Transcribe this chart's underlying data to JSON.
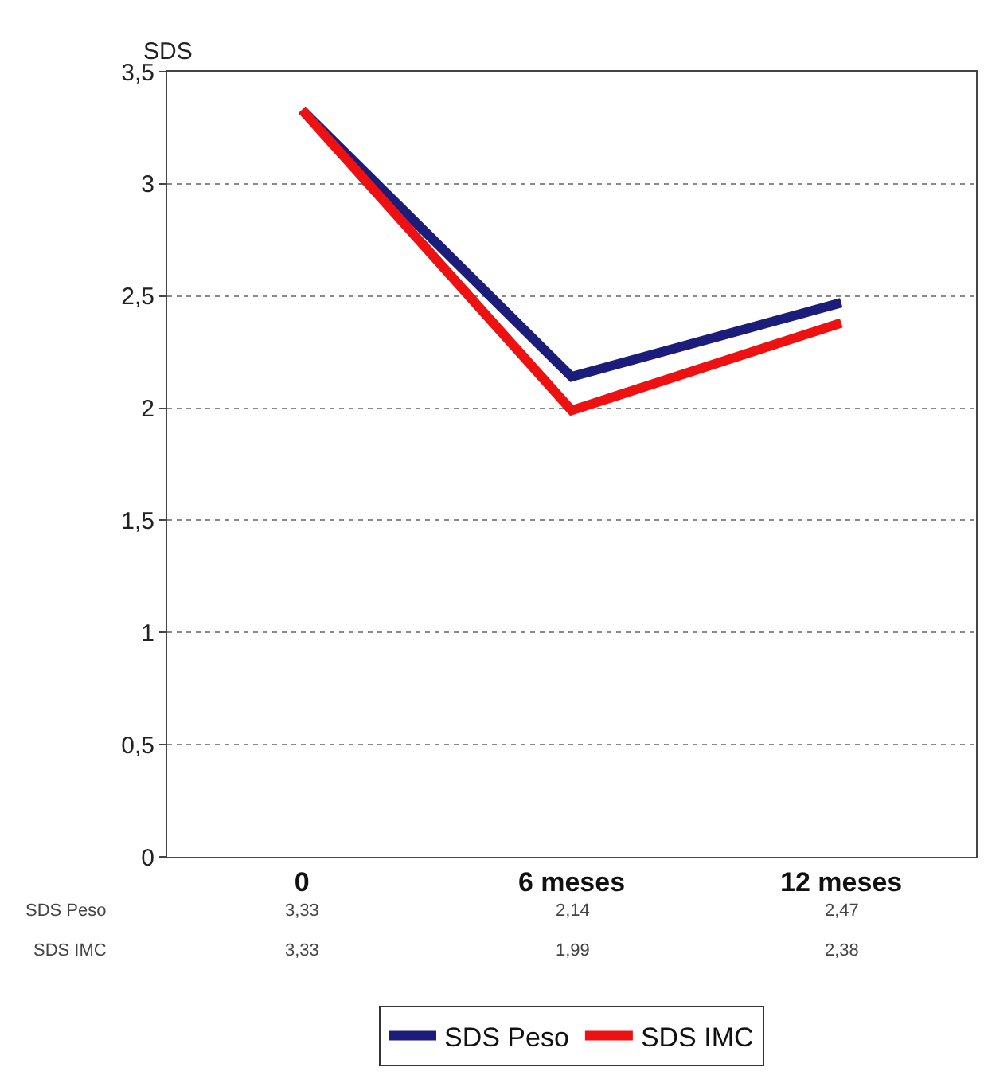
{
  "chart_data": {
    "type": "line",
    "ylabel": "SDS",
    "categories": [
      "0",
      "6 meses",
      "12 meses"
    ],
    "series": [
      {
        "name": "SDS Peso",
        "color": "#1c1c7a",
        "values": [
          3.33,
          2.14,
          2.47
        ],
        "value_labels": [
          "3,33",
          "2,14",
          "2,47"
        ]
      },
      {
        "name": "SDS IMC",
        "color": "#ee1111",
        "values": [
          3.33,
          1.99,
          2.38
        ],
        "value_labels": [
          "3,33",
          "1,99",
          "2,38"
        ]
      }
    ],
    "ylim": [
      0,
      3.5
    ],
    "yticks": [
      0,
      {
        "value": 0.5,
        "label": "0,5"
      },
      1,
      {
        "value": 1.5,
        "label": "1,5"
      },
      2,
      {
        "value": 2.5,
        "label": "2,5"
      },
      3,
      {
        "value": 3.5,
        "label": "3,5"
      }
    ],
    "grid": "y",
    "legend": "bottom",
    "line_style": "solid"
  }
}
